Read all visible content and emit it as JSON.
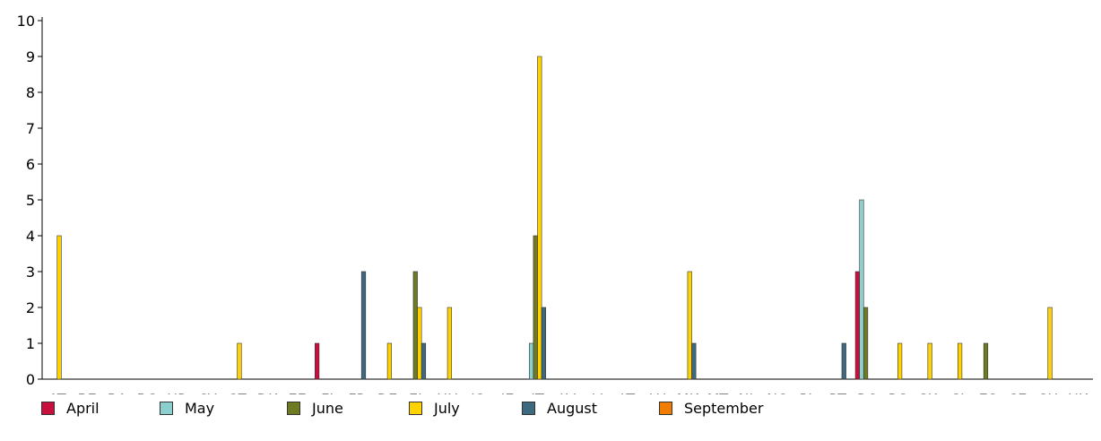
{
  "chart_data": {
    "type": "bar",
    "categories": [
      "AT",
      "BE",
      "BA",
      "BG",
      "HR",
      "CY",
      "CZ",
      "DK",
      "EE",
      "FI",
      "FR",
      "DE",
      "EL",
      "HU",
      "IS",
      "IE",
      "IT",
      "LV",
      "LI",
      "LT",
      "LU",
      "MK",
      "MT",
      "NL",
      "NO",
      "PL",
      "PT",
      "RO",
      "RS",
      "SK",
      "SI",
      "ES",
      "SE",
      "CH",
      "UK"
    ],
    "ylim": [
      0,
      10
    ],
    "yticks": [
      0,
      1,
      2,
      3,
      4,
      5,
      6,
      7,
      8,
      9,
      10
    ],
    "legend_position": "bottom",
    "grid": false,
    "series": [
      {
        "name": "April",
        "color": "#c8103e",
        "values": [
          0,
          0,
          0,
          0,
          0,
          0,
          0,
          0,
          0,
          1,
          0,
          0,
          0,
          0,
          0,
          0,
          0,
          0,
          0,
          0,
          0,
          0,
          0,
          0,
          0,
          0,
          0,
          3,
          0,
          0,
          0,
          0,
          0,
          0,
          0
        ]
      },
      {
        "name": "May",
        "color": "#8ccfcf",
        "values": [
          0,
          0,
          0,
          0,
          0,
          0,
          0,
          0,
          0,
          0,
          0,
          0,
          0,
          0,
          0,
          0,
          1,
          0,
          0,
          0,
          0,
          0,
          0,
          0,
          0,
          0,
          0,
          5,
          0,
          0,
          0,
          0,
          0,
          0,
          0
        ]
      },
      {
        "name": "June",
        "color": "#6f7a23",
        "values": [
          0,
          0,
          0,
          0,
          0,
          0,
          0,
          0,
          0,
          0,
          0,
          0,
          3,
          0,
          0,
          0,
          4,
          0,
          0,
          0,
          0,
          0,
          0,
          0,
          0,
          0,
          0,
          2,
          0,
          0,
          0,
          1,
          0,
          0,
          0
        ]
      },
      {
        "name": "July",
        "color": "#ffd200",
        "values": [
          4,
          0,
          0,
          0,
          0,
          0,
          1,
          0,
          0,
          0,
          0,
          1,
          2,
          2,
          0,
          0,
          9,
          0,
          0,
          0,
          0,
          3,
          0,
          0,
          0,
          0,
          0,
          0,
          1,
          1,
          1,
          0,
          0,
          2,
          0
        ]
      },
      {
        "name": "August",
        "color": "#3e6a80",
        "values": [
          0,
          0,
          0,
          0,
          0,
          0,
          0,
          0,
          0,
          0,
          3,
          0,
          1,
          0,
          0,
          0,
          2,
          0,
          0,
          0,
          0,
          1,
          0,
          0,
          0,
          0,
          1,
          0,
          0,
          0,
          0,
          0,
          0,
          0,
          0
        ]
      },
      {
        "name": "September",
        "color": "#f07d00",
        "values": [
          0,
          0,
          0,
          0,
          0,
          0,
          0,
          0,
          0,
          0,
          0,
          0,
          0,
          0,
          0,
          0,
          0,
          0,
          0,
          0,
          0,
          0,
          0,
          0,
          0,
          0,
          0,
          0,
          0,
          0,
          0,
          0,
          0,
          0,
          0
        ]
      }
    ]
  }
}
